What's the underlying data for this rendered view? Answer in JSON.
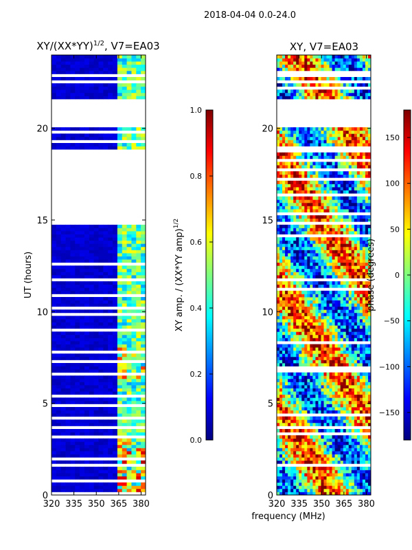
{
  "figure_title": "2018-04-04 0.0-24.0",
  "shared_xlabel": "frequency (MHz)",
  "chart_data": [
    {
      "type": "heatmap",
      "title": "XY/(XX*YY)",
      "title_sup": "1/2",
      "title_suffix": ", V7=EA03",
      "xlabel": "frequency (MHz)",
      "ylabel": "UT (hours)",
      "xlim": [
        320,
        383
      ],
      "ylim": [
        0,
        24
      ],
      "xticks": [
        320,
        335,
        350,
        365,
        380
      ],
      "yticks": [
        0,
        5,
        10,
        15,
        20
      ],
      "data_gaps_hours": [
        [
          15,
          18.8
        ],
        [
          20.2,
          21.5
        ]
      ],
      "channel_band_MHz": [
        361,
        382
      ],
      "colorbar": {
        "label": "XY amp. / (XX*YY amp)",
        "label_sup": "1/2",
        "range": [
          0.0,
          1.0
        ],
        "ticks": [
          "0.0",
          "0.2",
          "0.4",
          "0.6",
          "0.8",
          "1.0"
        ],
        "colormap": "jet"
      }
    },
    {
      "type": "heatmap",
      "title": "XY, V7=EA03",
      "xlabel": "frequency (MHz)",
      "ylabel": "",
      "xlim": [
        320,
        383
      ],
      "ylim": [
        0,
        24
      ],
      "xticks": [
        320,
        335,
        350,
        365,
        380
      ],
      "yticks": [
        0,
        5,
        10,
        15,
        20
      ],
      "data_gaps_hours": [
        [
          18.8,
          19.0
        ],
        [
          20.2,
          21.5
        ]
      ],
      "colorbar": {
        "label": "phase (degrees)",
        "range": [
          -180,
          180
        ],
        "ticks": [
          "−150",
          "−100",
          "−50",
          "0",
          "50",
          "100",
          "150"
        ],
        "colormap": "jet"
      }
    }
  ]
}
